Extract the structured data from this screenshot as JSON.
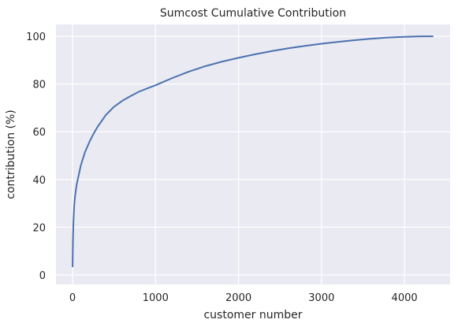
{
  "chart_data": {
    "type": "line",
    "title": "Sumcost Cumulative Contribution",
    "xlabel": "customer number",
    "ylabel": "contribution (%)",
    "xlim": [
      -200,
      4550
    ],
    "ylim": [
      -4,
      105
    ],
    "xticks": [
      0,
      1000,
      2000,
      3000,
      4000
    ],
    "yticks": [
      0,
      20,
      40,
      60,
      80,
      100
    ],
    "grid": true,
    "colors": {
      "background": "#eaeaf2",
      "grid": "#ffffff",
      "line": "#4c72b0"
    },
    "series": [
      {
        "x": [
          0,
          5,
          10,
          20,
          30,
          50,
          75,
          100,
          150,
          200,
          250,
          300,
          400,
          500,
          600,
          700,
          800,
          900,
          1000,
          1200,
          1400,
          1600,
          1800,
          2000,
          2200,
          2400,
          2600,
          2800,
          3000,
          3200,
          3400,
          3600,
          3800,
          4000,
          4200,
          4340
        ],
        "y": [
          3.5,
          15,
          22,
          29,
          33,
          38,
          42,
          46,
          51.5,
          55.5,
          59,
          62,
          67,
          70.5,
          73,
          75,
          76.8,
          78.2,
          79.5,
          82.5,
          85.2,
          87.5,
          89.4,
          91,
          92.5,
          93.8,
          95,
          96,
          96.9,
          97.7,
          98.4,
          99,
          99.5,
          99.8,
          100,
          100
        ]
      }
    ]
  }
}
